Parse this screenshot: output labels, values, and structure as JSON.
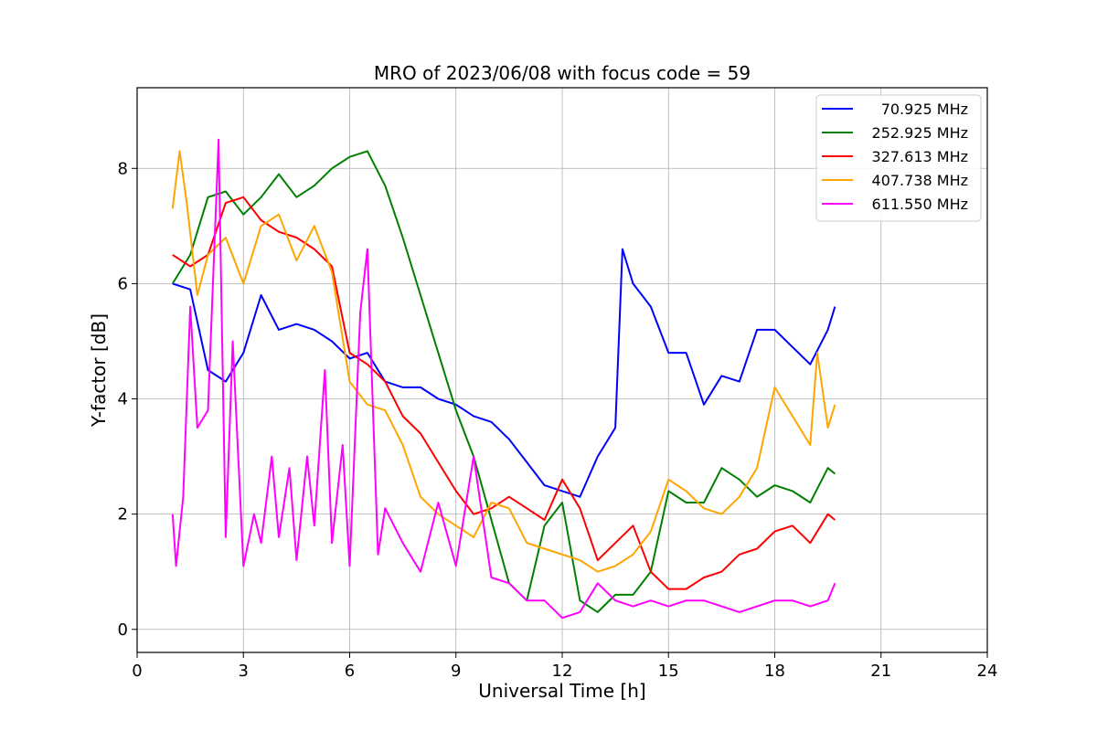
{
  "chart_data": {
    "type": "line",
    "title": "MRO of 2023/06/08 with focus code = 59",
    "xlabel": "Universal Time [h]",
    "ylabel": "Y-factor [dB]",
    "xlim": [
      0,
      24
    ],
    "ylim": [
      -0.4,
      9.4
    ],
    "xticks": [
      0,
      3,
      6,
      9,
      12,
      15,
      18,
      21,
      24
    ],
    "yticks": [
      0,
      2,
      4,
      6,
      8
    ],
    "grid": true,
    "legend_position": "top-right",
    "series": [
      {
        "name": "70.925 MHz",
        "color": "#0000ff",
        "x": [
          1.0,
          1.5,
          2.0,
          2.5,
          3.0,
          3.5,
          4.0,
          4.5,
          5.0,
          5.5,
          6.0,
          6.5,
          7.0,
          7.5,
          8.0,
          8.5,
          9.0,
          9.5,
          10.0,
          10.5,
          11.0,
          11.5,
          12.0,
          12.5,
          13.0,
          13.5,
          13.7,
          14.0,
          14.5,
          15.0,
          15.5,
          16.0,
          16.5,
          17.0,
          17.5,
          18.0,
          18.5,
          19.0,
          19.5,
          19.7
        ],
        "y": [
          6.0,
          5.9,
          4.5,
          4.3,
          4.8,
          5.8,
          5.2,
          5.3,
          5.2,
          5.0,
          4.7,
          4.8,
          4.3,
          4.2,
          4.2,
          4.0,
          3.9,
          3.7,
          3.6,
          3.3,
          2.9,
          2.5,
          2.4,
          2.3,
          3.0,
          3.5,
          6.6,
          6.0,
          5.6,
          4.8,
          4.8,
          3.9,
          4.4,
          4.3,
          5.2,
          5.2,
          4.9,
          4.6,
          5.2,
          5.6
        ]
      },
      {
        "name": "252.925 MHz",
        "color": "#008000",
        "x": [
          1.0,
          1.5,
          2.0,
          2.5,
          3.0,
          3.5,
          4.0,
          4.5,
          5.0,
          5.5,
          6.0,
          6.5,
          7.0,
          7.5,
          8.0,
          8.5,
          9.0,
          9.5,
          10.0,
          10.5,
          11.0,
          11.5,
          12.0,
          12.5,
          13.0,
          13.5,
          14.0,
          14.5,
          15.0,
          15.5,
          16.0,
          16.5,
          17.0,
          17.5,
          18.0,
          18.5,
          19.0,
          19.5,
          19.7
        ],
        "y": [
          6.0,
          6.5,
          7.5,
          7.6,
          7.2,
          7.5,
          7.9,
          7.5,
          7.7,
          8.0,
          8.2,
          8.3,
          7.7,
          6.8,
          5.8,
          4.8,
          3.8,
          3.0,
          1.9,
          0.8,
          0.5,
          1.8,
          2.2,
          0.5,
          0.3,
          0.6,
          0.6,
          1.0,
          2.4,
          2.2,
          2.2,
          2.8,
          2.6,
          2.3,
          2.5,
          2.4,
          2.2,
          2.8,
          2.7
        ]
      },
      {
        "name": "327.613 MHz",
        "color": "#ff0000",
        "x": [
          1.0,
          1.5,
          2.0,
          2.5,
          3.0,
          3.5,
          4.0,
          4.5,
          5.0,
          5.5,
          6.0,
          6.5,
          7.0,
          7.5,
          8.0,
          8.5,
          9.0,
          9.5,
          10.0,
          10.5,
          11.0,
          11.5,
          12.0,
          12.5,
          13.0,
          13.5,
          14.0,
          14.5,
          15.0,
          15.5,
          16.0,
          16.5,
          17.0,
          17.5,
          18.0,
          18.5,
          19.0,
          19.5,
          19.7
        ],
        "y": [
          6.5,
          6.3,
          6.5,
          7.4,
          7.5,
          7.1,
          6.9,
          6.8,
          6.6,
          6.3,
          4.8,
          4.6,
          4.3,
          3.7,
          3.4,
          2.9,
          2.4,
          2.0,
          2.1,
          2.3,
          2.1,
          1.9,
          2.6,
          2.1,
          1.2,
          1.5,
          1.8,
          1.0,
          0.7,
          0.7,
          0.9,
          1.0,
          1.3,
          1.4,
          1.7,
          1.8,
          1.5,
          2.0,
          1.9
        ]
      },
      {
        "name": "407.738 MHz",
        "color": "#ffa500",
        "x": [
          1.0,
          1.2,
          1.4,
          1.7,
          2.0,
          2.5,
          3.0,
          3.5,
          4.0,
          4.5,
          5.0,
          5.5,
          6.0,
          6.5,
          7.0,
          7.5,
          8.0,
          8.5,
          9.0,
          9.5,
          10.0,
          10.5,
          11.0,
          11.5,
          12.0,
          12.5,
          13.0,
          13.5,
          14.0,
          14.5,
          15.0,
          15.5,
          16.0,
          16.5,
          17.0,
          17.5,
          18.0,
          18.5,
          19.0,
          19.2,
          19.5,
          19.7
        ],
        "y": [
          7.3,
          8.3,
          7.4,
          5.8,
          6.5,
          6.8,
          6.0,
          7.0,
          7.2,
          6.4,
          7.0,
          6.2,
          4.3,
          3.9,
          3.8,
          3.2,
          2.3,
          2.0,
          1.8,
          1.6,
          2.2,
          2.1,
          1.5,
          1.4,
          1.3,
          1.2,
          1.0,
          1.1,
          1.3,
          1.7,
          2.6,
          2.4,
          2.1,
          2.0,
          2.3,
          2.8,
          4.2,
          3.7,
          3.2,
          4.8,
          3.5,
          3.9
        ]
      },
      {
        "name": "611.550 MHz",
        "color": "#ff00ff",
        "x": [
          1.0,
          1.1,
          1.3,
          1.5,
          1.7,
          2.0,
          2.3,
          2.5,
          2.7,
          3.0,
          3.3,
          3.5,
          3.8,
          4.0,
          4.3,
          4.5,
          4.8,
          5.0,
          5.3,
          5.5,
          5.8,
          6.0,
          6.3,
          6.5,
          6.8,
          7.0,
          7.5,
          8.0,
          8.5,
          9.0,
          9.5,
          10.0,
          10.5,
          11.0,
          11.5,
          12.0,
          12.5,
          13.0,
          13.5,
          14.0,
          14.5,
          15.0,
          15.5,
          16.0,
          16.5,
          17.0,
          17.5,
          18.0,
          18.5,
          19.0,
          19.5,
          19.7
        ],
        "y": [
          2.0,
          1.1,
          2.3,
          5.6,
          3.5,
          3.8,
          8.5,
          1.6,
          5.0,
          1.1,
          2.0,
          1.5,
          3.0,
          1.6,
          2.8,
          1.2,
          3.0,
          1.8,
          4.5,
          1.5,
          3.2,
          1.1,
          5.5,
          6.6,
          1.3,
          2.1,
          1.5,
          1.0,
          2.2,
          1.1,
          3.0,
          0.9,
          0.8,
          0.5,
          0.5,
          0.2,
          0.3,
          0.8,
          0.5,
          0.4,
          0.5,
          0.4,
          0.5,
          0.5,
          0.4,
          0.3,
          0.4,
          0.5,
          0.5,
          0.4,
          0.5,
          0.8
        ]
      }
    ]
  }
}
